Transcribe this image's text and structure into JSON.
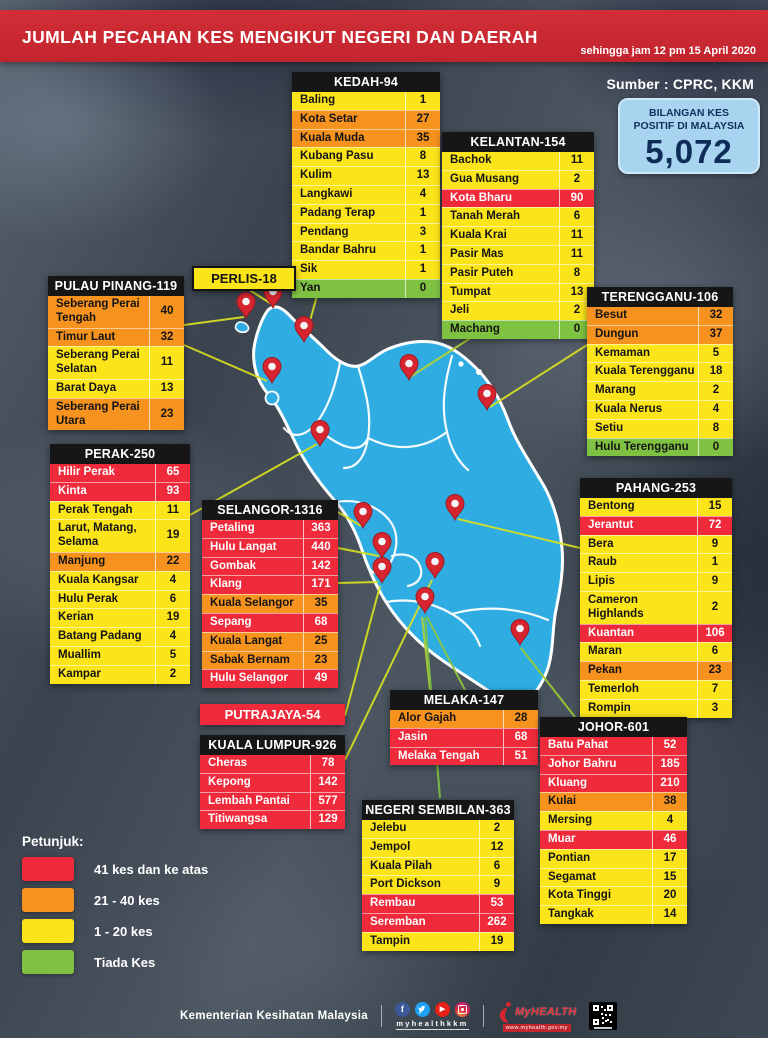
{
  "header": {
    "title": "JUMLAH PECAHAN KES MENGIKUT NEGERI DAN DAERAH",
    "as_of": "sehingga jam 12 pm 15 April 2020"
  },
  "source_label": "Sumber : CPRC, KKM",
  "total_box": {
    "label_line1": "BILANGAN KES",
    "label_line2": "POSITIF DI MALAYSIA",
    "value": "5,072"
  },
  "legend_title": "Petunjuk:",
  "footer": {
    "ministry": "Kementerian Kesihatan Malaysia",
    "social_handle": "myhealthkkm",
    "social_icons": [
      "facebook-icon",
      "twitter-icon",
      "youtube-icon",
      "instagram-icon"
    ],
    "logo_text": "MyHEALTH",
    "logo_url": "www.myhealth.gov.my"
  },
  "colors": {
    "red": "#ee2a3b",
    "orange": "#f6921e",
    "yellow": "#fbe41a",
    "green": "#7fc242",
    "banner_red": "#c9252e",
    "map_blue": "#2fade3",
    "connector_line": "#d9e021",
    "table_header": "#161616",
    "total_box_bg": "#a9d4f0",
    "total_text": "#10305c",
    "pin": "#d6252e"
  },
  "chart_data": {
    "type": "table",
    "title": "JUMLAH PECAHAN KES MENGIKUT NEGERI DAN DAERAH",
    "as_of": "sehingga jam 12 pm 15 April 2020",
    "source": "Sumber : CPRC, KKM",
    "total_positive_cases_malaysia": 5072,
    "legend_levels": [
      {
        "level": "red",
        "label": "41 kes dan ke atas"
      },
      {
        "level": "orange",
        "label": "21 - 40 kes"
      },
      {
        "level": "yellow",
        "label": "1 - 20 kes"
      },
      {
        "level": "green",
        "label": "Tiada Kes"
      }
    ],
    "states": [
      {
        "id": "kedah",
        "name": "Kedah",
        "label": "KEDAH-94",
        "total": 94,
        "districts": [
          {
            "name": "Baling",
            "cases": 1,
            "level": "yellow"
          },
          {
            "name": "Kota Setar",
            "cases": 27,
            "level": "orange"
          },
          {
            "name": "Kuala Muda",
            "cases": 35,
            "level": "orange"
          },
          {
            "name": "Kubang Pasu",
            "cases": 8,
            "level": "yellow"
          },
          {
            "name": "Kulim",
            "cases": 13,
            "level": "yellow"
          },
          {
            "name": "Langkawi",
            "cases": 4,
            "level": "yellow"
          },
          {
            "name": "Padang Terap",
            "cases": 1,
            "level": "yellow"
          },
          {
            "name": "Pendang",
            "cases": 3,
            "level": "yellow"
          },
          {
            "name": "Bandar Bahru",
            "cases": 1,
            "level": "yellow"
          },
          {
            "name": "Sik",
            "cases": 1,
            "level": "yellow"
          },
          {
            "name": "Yan",
            "cases": 0,
            "level": "green"
          }
        ]
      },
      {
        "id": "kelantan",
        "name": "Kelantan",
        "label": "KELANTAN-154",
        "total": 154,
        "districts": [
          {
            "name": "Bachok",
            "cases": 11,
            "level": "yellow"
          },
          {
            "name": "Gua Musang",
            "cases": 2,
            "level": "yellow"
          },
          {
            "name": "Kota Bharu",
            "cases": 90,
            "level": "red"
          },
          {
            "name": "Tanah Merah",
            "cases": 6,
            "level": "yellow"
          },
          {
            "name": "Kuala Krai",
            "cases": 11,
            "level": "yellow"
          },
          {
            "name": "Pasir Mas",
            "cases": 11,
            "level": "yellow"
          },
          {
            "name": "Pasir Puteh",
            "cases": 8,
            "level": "yellow"
          },
          {
            "name": "Tumpat",
            "cases": 13,
            "level": "yellow"
          },
          {
            "name": "Jeli",
            "cases": 2,
            "level": "yellow"
          },
          {
            "name": "Machang",
            "cases": 0,
            "level": "green"
          }
        ]
      },
      {
        "id": "perlis",
        "name": "Perlis",
        "label": "PERLIS-18",
        "total": 18,
        "label_only": true,
        "level": "yellow"
      },
      {
        "id": "pulaupinang",
        "name": "Pulau Pinang",
        "label": "PULAU PINANG-119",
        "total": 119,
        "districts": [
          {
            "name": "Seberang Perai Tengah",
            "cases": 40,
            "level": "orange"
          },
          {
            "name": "Timur Laut",
            "cases": 32,
            "level": "orange"
          },
          {
            "name": "Seberang Perai Selatan",
            "cases": 11,
            "level": "yellow"
          },
          {
            "name": "Barat Daya",
            "cases": 13,
            "level": "yellow"
          },
          {
            "name": "Seberang Perai Utara",
            "cases": 23,
            "level": "orange"
          }
        ]
      },
      {
        "id": "terengganu",
        "name": "Terengganu",
        "label": "TERENGGANU-106",
        "total": 106,
        "districts": [
          {
            "name": "Besut",
            "cases": 32,
            "level": "orange"
          },
          {
            "name": "Dungun",
            "cases": 37,
            "level": "orange"
          },
          {
            "name": "Kemaman",
            "cases": 5,
            "level": "yellow"
          },
          {
            "name": "Kuala Terengganu",
            "cases": 18,
            "level": "yellow"
          },
          {
            "name": "Marang",
            "cases": 2,
            "level": "yellow"
          },
          {
            "name": "Kuala Nerus",
            "cases": 4,
            "level": "yellow"
          },
          {
            "name": "Setiu",
            "cases": 8,
            "level": "yellow"
          },
          {
            "name": "Hulu Terengganu",
            "cases": 0,
            "level": "green"
          }
        ]
      },
      {
        "id": "perak",
        "name": "Perak",
        "label": "PERAK-250",
        "total": 250,
        "districts": [
          {
            "name": "Hilir Perak",
            "cases": 65,
            "level": "red"
          },
          {
            "name": "Kinta",
            "cases": 93,
            "level": "red"
          },
          {
            "name": "Perak Tengah",
            "cases": 11,
            "level": "yellow"
          },
          {
            "name": "Larut, Matang, Selama",
            "cases": 19,
            "level": "yellow"
          },
          {
            "name": "Manjung",
            "cases": 22,
            "level": "orange"
          },
          {
            "name": "Kuala Kangsar",
            "cases": 4,
            "level": "yellow"
          },
          {
            "name": "Hulu Perak",
            "cases": 6,
            "level": "yellow"
          },
          {
            "name": "Kerian",
            "cases": 19,
            "level": "yellow"
          },
          {
            "name": "Batang Padang",
            "cases": 4,
            "level": "yellow"
          },
          {
            "name": "Muallim",
            "cases": 5,
            "level": "yellow"
          },
          {
            "name": "Kampar",
            "cases": 2,
            "level": "yellow"
          }
        ]
      },
      {
        "id": "selangor",
        "name": "Selangor",
        "label": "SELANGOR-1316",
        "total": 1316,
        "districts": [
          {
            "name": "Petaling",
            "cases": 363,
            "level": "red"
          },
          {
            "name": "Hulu Langat",
            "cases": 440,
            "level": "red"
          },
          {
            "name": "Gombak",
            "cases": 142,
            "level": "red"
          },
          {
            "name": "Klang",
            "cases": 171,
            "level": "red"
          },
          {
            "name": "Kuala Selangor",
            "cases": 35,
            "level": "orange"
          },
          {
            "name": "Sepang",
            "cases": 68,
            "level": "red"
          },
          {
            "name": "Kuala Langat",
            "cases": 25,
            "level": "orange"
          },
          {
            "name": "Sabak Bernam",
            "cases": 23,
            "level": "orange"
          },
          {
            "name": "Hulu Selangor",
            "cases": 49,
            "level": "red"
          }
        ]
      },
      {
        "id": "pahang",
        "name": "Pahang",
        "label": "PAHANG-253",
        "total": 253,
        "districts": [
          {
            "name": "Bentong",
            "cases": 15,
            "level": "yellow"
          },
          {
            "name": "Jerantut",
            "cases": 72,
            "level": "red"
          },
          {
            "name": "Bera",
            "cases": 9,
            "level": "yellow"
          },
          {
            "name": "Raub",
            "cases": 1,
            "level": "yellow"
          },
          {
            "name": "Lipis",
            "cases": 9,
            "level": "yellow"
          },
          {
            "name": "Cameron Highlands",
            "cases": 2,
            "level": "yellow"
          },
          {
            "name": "Kuantan",
            "cases": 106,
            "level": "red"
          },
          {
            "name": "Maran",
            "cases": 6,
            "level": "yellow"
          },
          {
            "name": "Pekan",
            "cases": 23,
            "level": "orange"
          },
          {
            "name": "Temerloh",
            "cases": 7,
            "level": "yellow"
          },
          {
            "name": "Rompin",
            "cases": 3,
            "level": "yellow"
          }
        ]
      },
      {
        "id": "putrajaya",
        "name": "Putrajaya",
        "label": "PUTRAJAYA-54",
        "total": 54,
        "label_only": true,
        "level": "red"
      },
      {
        "id": "kualalumpur",
        "name": "Kuala Lumpur",
        "label": "KUALA LUMPUR-926",
        "total": 926,
        "districts": [
          {
            "name": "Cheras",
            "cases": 78,
            "level": "red"
          },
          {
            "name": "Kepong",
            "cases": 142,
            "level": "red"
          },
          {
            "name": "Lembah Pantai",
            "cases": 577,
            "level": "red"
          },
          {
            "name": "Titiwangsa",
            "cases": 129,
            "level": "red"
          }
        ]
      },
      {
        "id": "melaka",
        "name": "Melaka",
        "label": "MELAKA-147",
        "total": 147,
        "districts": [
          {
            "name": "Alor Gajah",
            "cases": 28,
            "level": "orange"
          },
          {
            "name": "Jasin",
            "cases": 68,
            "level": "red"
          },
          {
            "name": "Melaka Tengah",
            "cases": 51,
            "level": "red"
          }
        ]
      },
      {
        "id": "negerisembilan",
        "name": "Negeri Sembilan",
        "label": "NEGERI SEMBILAN-363",
        "total": 363,
        "districts": [
          {
            "name": "Jelebu",
            "cases": 2,
            "level": "yellow"
          },
          {
            "name": "Jempol",
            "cases": 12,
            "level": "yellow"
          },
          {
            "name": "Kuala Pilah",
            "cases": 6,
            "level": "yellow"
          },
          {
            "name": "Port Dickson",
            "cases": 9,
            "level": "yellow"
          },
          {
            "name": "Rembau",
            "cases": 53,
            "level": "red"
          },
          {
            "name": "Seremban",
            "cases": 262,
            "level": "red"
          },
          {
            "name": "Tampin",
            "cases": 19,
            "level": "yellow"
          }
        ]
      },
      {
        "id": "johor",
        "name": "Johor",
        "label": "JOHOR-601",
        "total": 601,
        "districts": [
          {
            "name": "Batu Pahat",
            "cases": 52,
            "level": "red"
          },
          {
            "name": "Johor Bahru",
            "cases": 185,
            "level": "red"
          },
          {
            "name": "Kluang",
            "cases": 210,
            "level": "red"
          },
          {
            "name": "Kulai",
            "cases": 38,
            "level": "orange"
          },
          {
            "name": "Mersing",
            "cases": 4,
            "level": "yellow"
          },
          {
            "name": "Muar",
            "cases": 46,
            "level": "red"
          },
          {
            "name": "Pontian",
            "cases": 17,
            "level": "yellow"
          },
          {
            "name": "Segamat",
            "cases": 15,
            "level": "yellow"
          },
          {
            "name": "Kota Tinggi",
            "cases": 20,
            "level": "yellow"
          },
          {
            "name": "Tangkak",
            "cases": 14,
            "level": "yellow"
          }
        ]
      }
    ]
  }
}
